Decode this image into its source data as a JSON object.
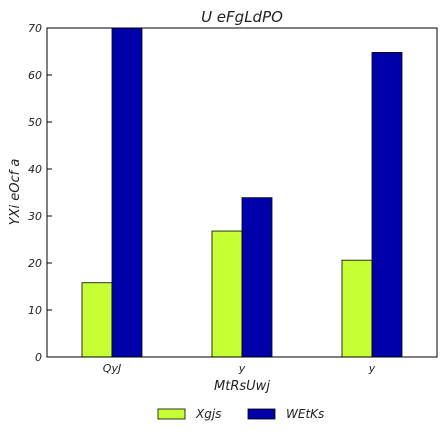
{
  "chart_data": {
    "type": "bar",
    "title": "U  eFgLdPO",
    "xlabel": "MtRsUwj",
    "ylabel": "YXi eOcf a",
    "categories": [
      "QyJ",
      "y",
      "y"
    ],
    "series": [
      {
        "name": "Xgjs",
        "values": [
          15.8,
          26.8,
          20.6
        ],
        "color": "#c6ff33"
      },
      {
        "name": "WEtKs",
        "values": [
          70.0,
          33.9,
          64.8
        ],
        "color": "#0000aa"
      }
    ],
    "ylim": [
      0,
      70
    ],
    "yticks": [
      0,
      10,
      20,
      30,
      40,
      50,
      60,
      70
    ],
    "grid": false,
    "legend_position": "bottom-center"
  }
}
